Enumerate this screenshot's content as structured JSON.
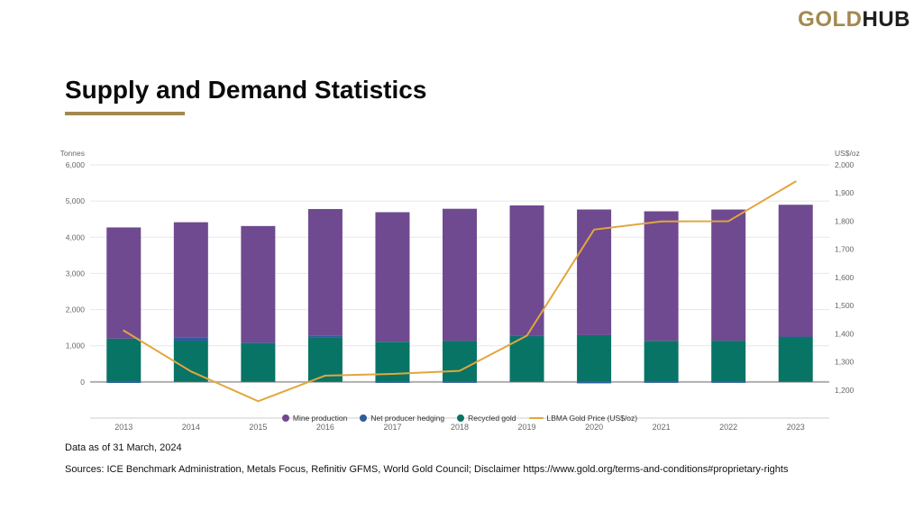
{
  "header": {
    "logo_gold": "GOLD",
    "logo_hub": "HUB"
  },
  "title": "Supply and Demand Statistics",
  "colors": {
    "brand_gold": "#a3894f",
    "mine_production": "#6f4a90",
    "net_producer_hedging": "#2f5b9d",
    "recycled_gold": "#087465",
    "gold_price_line": "#e2a63d"
  },
  "chart_data": {
    "type": "bar",
    "subtype": "stacked-bars-with-line",
    "categories": [
      "2013",
      "2014",
      "2015",
      "2016",
      "2017",
      "2018",
      "2019",
      "2020",
      "2021",
      "2022",
      "2023"
    ],
    "series": [
      {
        "name": "Mine production",
        "type": "bar",
        "axis": "left",
        "color": "#6f4a90",
        "values": [
          3075,
          3180,
          3222,
          3510,
          3580,
          3655,
          3597,
          3474,
          3581,
          3626,
          3644
        ]
      },
      {
        "name": "Net producer hedging",
        "type": "bar",
        "axis": "left",
        "color": "#2f5b9d",
        "values": [
          -28,
          105,
          21,
          38,
          -26,
          -12,
          6,
          -39,
          -25,
          -11,
          17
        ]
      },
      {
        "name": "Recycled gold",
        "type": "bar",
        "axis": "left",
        "color": "#087465",
        "values": [
          1196,
          1130,
          1067,
          1232,
          1112,
          1132,
          1276,
          1293,
          1136,
          1140,
          1237
        ]
      },
      {
        "name": "LBMA Gold Price (US$/oz)",
        "type": "line",
        "axis": "right",
        "color": "#e2a63d",
        "values": [
          1411,
          1266,
          1160,
          1251,
          1257,
          1268,
          1393,
          1770,
          1799,
          1800,
          1941
        ]
      }
    ],
    "left_axis": {
      "title": "Tonnes",
      "min": -1000,
      "max": 6000,
      "ticks": [
        0,
        1000,
        2000,
        3000,
        4000,
        5000,
        6000
      ]
    },
    "right_axis": {
      "title": "US$/oz",
      "min": 1100,
      "max": 2000,
      "ticks": [
        1200,
        1300,
        1400,
        1500,
        1600,
        1700,
        1800,
        1900,
        2000
      ]
    },
    "grid": "horizontal-left-axis-only",
    "legend_position": "bottom-overlapping-x-labels"
  },
  "footer": {
    "data_as_of": "Data as of 31 March, 2024",
    "sources": "Sources: ICE Benchmark Administration, Metals Focus, Refinitiv GFMS, World Gold Council; Disclaimer https://www.gold.org/terms-and-conditions#proprietary-rights"
  }
}
